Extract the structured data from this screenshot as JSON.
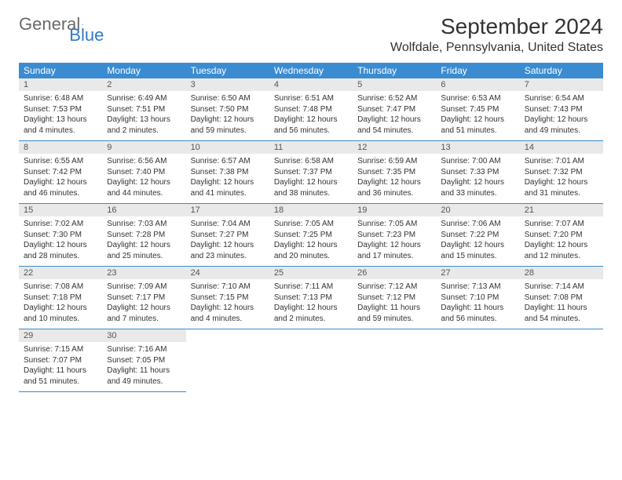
{
  "brand": {
    "part1": "General",
    "part2": "Blue"
  },
  "title": "September 2024",
  "location": "Wolfdale, Pennsylvania, United States",
  "colors": {
    "header_bg": "#3b8bd0",
    "header_text": "#ffffff",
    "daynum_bg": "#e9e9e9",
    "border": "#3b8bd0",
    "brand_gray": "#6a6a6a",
    "brand_blue": "#2f7bc4"
  },
  "dayNames": [
    "Sunday",
    "Monday",
    "Tuesday",
    "Wednesday",
    "Thursday",
    "Friday",
    "Saturday"
  ],
  "weeks": [
    [
      {
        "n": "1",
        "sr": "Sunrise: 6:48 AM",
        "ss": "Sunset: 7:53 PM",
        "d1": "Daylight: 13 hours",
        "d2": "and 4 minutes."
      },
      {
        "n": "2",
        "sr": "Sunrise: 6:49 AM",
        "ss": "Sunset: 7:51 PM",
        "d1": "Daylight: 13 hours",
        "d2": "and 2 minutes."
      },
      {
        "n": "3",
        "sr": "Sunrise: 6:50 AM",
        "ss": "Sunset: 7:50 PM",
        "d1": "Daylight: 12 hours",
        "d2": "and 59 minutes."
      },
      {
        "n": "4",
        "sr": "Sunrise: 6:51 AM",
        "ss": "Sunset: 7:48 PM",
        "d1": "Daylight: 12 hours",
        "d2": "and 56 minutes."
      },
      {
        "n": "5",
        "sr": "Sunrise: 6:52 AM",
        "ss": "Sunset: 7:47 PM",
        "d1": "Daylight: 12 hours",
        "d2": "and 54 minutes."
      },
      {
        "n": "6",
        "sr": "Sunrise: 6:53 AM",
        "ss": "Sunset: 7:45 PM",
        "d1": "Daylight: 12 hours",
        "d2": "and 51 minutes."
      },
      {
        "n": "7",
        "sr": "Sunrise: 6:54 AM",
        "ss": "Sunset: 7:43 PM",
        "d1": "Daylight: 12 hours",
        "d2": "and 49 minutes."
      }
    ],
    [
      {
        "n": "8",
        "sr": "Sunrise: 6:55 AM",
        "ss": "Sunset: 7:42 PM",
        "d1": "Daylight: 12 hours",
        "d2": "and 46 minutes."
      },
      {
        "n": "9",
        "sr": "Sunrise: 6:56 AM",
        "ss": "Sunset: 7:40 PM",
        "d1": "Daylight: 12 hours",
        "d2": "and 44 minutes."
      },
      {
        "n": "10",
        "sr": "Sunrise: 6:57 AM",
        "ss": "Sunset: 7:38 PM",
        "d1": "Daylight: 12 hours",
        "d2": "and 41 minutes."
      },
      {
        "n": "11",
        "sr": "Sunrise: 6:58 AM",
        "ss": "Sunset: 7:37 PM",
        "d1": "Daylight: 12 hours",
        "d2": "and 38 minutes."
      },
      {
        "n": "12",
        "sr": "Sunrise: 6:59 AM",
        "ss": "Sunset: 7:35 PM",
        "d1": "Daylight: 12 hours",
        "d2": "and 36 minutes."
      },
      {
        "n": "13",
        "sr": "Sunrise: 7:00 AM",
        "ss": "Sunset: 7:33 PM",
        "d1": "Daylight: 12 hours",
        "d2": "and 33 minutes."
      },
      {
        "n": "14",
        "sr": "Sunrise: 7:01 AM",
        "ss": "Sunset: 7:32 PM",
        "d1": "Daylight: 12 hours",
        "d2": "and 31 minutes."
      }
    ],
    [
      {
        "n": "15",
        "sr": "Sunrise: 7:02 AM",
        "ss": "Sunset: 7:30 PM",
        "d1": "Daylight: 12 hours",
        "d2": "and 28 minutes."
      },
      {
        "n": "16",
        "sr": "Sunrise: 7:03 AM",
        "ss": "Sunset: 7:28 PM",
        "d1": "Daylight: 12 hours",
        "d2": "and 25 minutes."
      },
      {
        "n": "17",
        "sr": "Sunrise: 7:04 AM",
        "ss": "Sunset: 7:27 PM",
        "d1": "Daylight: 12 hours",
        "d2": "and 23 minutes."
      },
      {
        "n": "18",
        "sr": "Sunrise: 7:05 AM",
        "ss": "Sunset: 7:25 PM",
        "d1": "Daylight: 12 hours",
        "d2": "and 20 minutes."
      },
      {
        "n": "19",
        "sr": "Sunrise: 7:05 AM",
        "ss": "Sunset: 7:23 PM",
        "d1": "Daylight: 12 hours",
        "d2": "and 17 minutes."
      },
      {
        "n": "20",
        "sr": "Sunrise: 7:06 AM",
        "ss": "Sunset: 7:22 PM",
        "d1": "Daylight: 12 hours",
        "d2": "and 15 minutes."
      },
      {
        "n": "21",
        "sr": "Sunrise: 7:07 AM",
        "ss": "Sunset: 7:20 PM",
        "d1": "Daylight: 12 hours",
        "d2": "and 12 minutes."
      }
    ],
    [
      {
        "n": "22",
        "sr": "Sunrise: 7:08 AM",
        "ss": "Sunset: 7:18 PM",
        "d1": "Daylight: 12 hours",
        "d2": "and 10 minutes."
      },
      {
        "n": "23",
        "sr": "Sunrise: 7:09 AM",
        "ss": "Sunset: 7:17 PM",
        "d1": "Daylight: 12 hours",
        "d2": "and 7 minutes."
      },
      {
        "n": "24",
        "sr": "Sunrise: 7:10 AM",
        "ss": "Sunset: 7:15 PM",
        "d1": "Daylight: 12 hours",
        "d2": "and 4 minutes."
      },
      {
        "n": "25",
        "sr": "Sunrise: 7:11 AM",
        "ss": "Sunset: 7:13 PM",
        "d1": "Daylight: 12 hours",
        "d2": "and 2 minutes."
      },
      {
        "n": "26",
        "sr": "Sunrise: 7:12 AM",
        "ss": "Sunset: 7:12 PM",
        "d1": "Daylight: 11 hours",
        "d2": "and 59 minutes."
      },
      {
        "n": "27",
        "sr": "Sunrise: 7:13 AM",
        "ss": "Sunset: 7:10 PM",
        "d1": "Daylight: 11 hours",
        "d2": "and 56 minutes."
      },
      {
        "n": "28",
        "sr": "Sunrise: 7:14 AM",
        "ss": "Sunset: 7:08 PM",
        "d1": "Daylight: 11 hours",
        "d2": "and 54 minutes."
      }
    ],
    [
      {
        "n": "29",
        "sr": "Sunrise: 7:15 AM",
        "ss": "Sunset: 7:07 PM",
        "d1": "Daylight: 11 hours",
        "d2": "and 51 minutes."
      },
      {
        "n": "30",
        "sr": "Sunrise: 7:16 AM",
        "ss": "Sunset: 7:05 PM",
        "d1": "Daylight: 11 hours",
        "d2": "and 49 minutes."
      },
      null,
      null,
      null,
      null,
      null
    ]
  ]
}
